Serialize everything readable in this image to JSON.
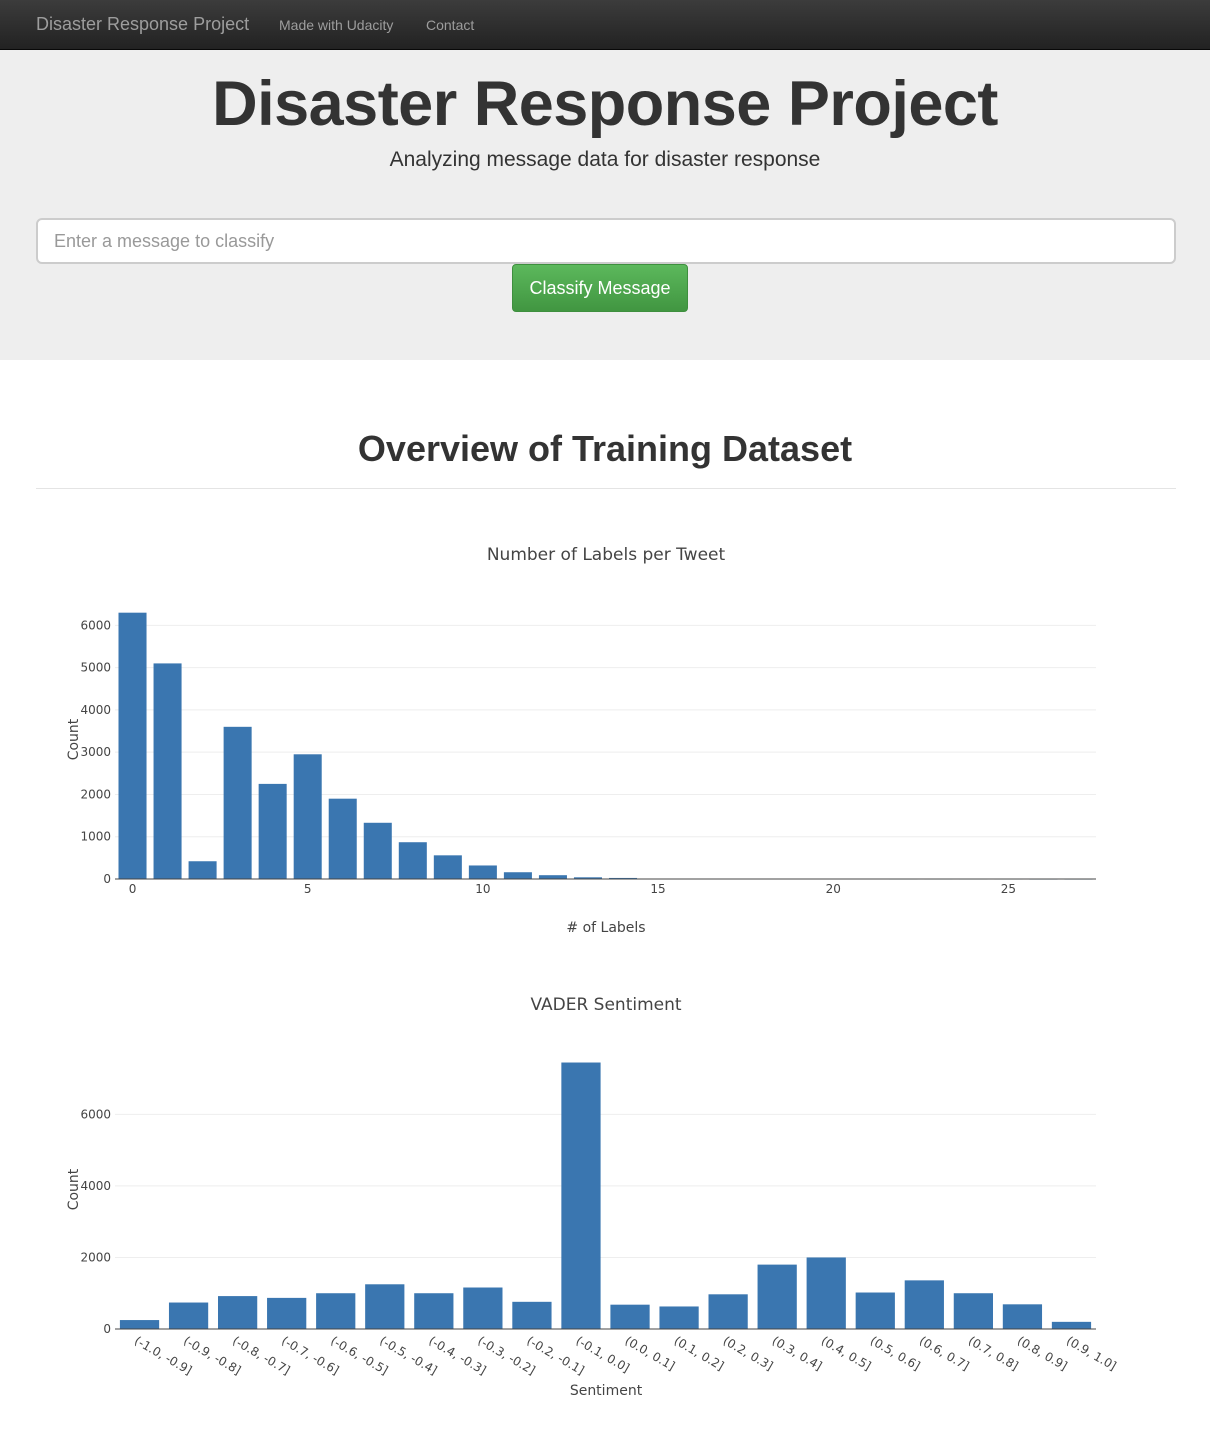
{
  "navbar": {
    "brand": "Disaster Response Project",
    "links": [
      "Made with Udacity",
      "Contact"
    ]
  },
  "header": {
    "title": "Disaster Response Project",
    "subtitle": "Analyzing message data for disaster response"
  },
  "form": {
    "placeholder": "Enter a message to classify",
    "value": "",
    "button_label": "Classify Message"
  },
  "section": {
    "title": "Overview of Training Dataset"
  },
  "colors": {
    "bar": "#3a76b0",
    "button": "#5cb85c",
    "navbar": "#222222",
    "jumbotron": "#eeeeee"
  },
  "chart_data": [
    {
      "type": "bar",
      "title": "Number of Labels per Tweet",
      "xlabel": "# of Labels",
      "ylabel": "Count",
      "x": [
        0,
        1,
        2,
        3,
        4,
        5,
        6,
        7,
        8,
        9,
        10,
        11,
        12,
        13,
        14,
        15,
        16,
        17,
        18,
        19,
        20,
        21,
        22,
        23,
        24,
        25,
        26,
        27
      ],
      "values": [
        6300,
        5100,
        420,
        3600,
        2250,
        2950,
        1900,
        1330,
        870,
        560,
        320,
        160,
        90,
        40,
        25,
        10,
        8,
        6,
        5,
        4,
        3,
        3,
        2,
        2,
        2,
        2,
        1,
        1
      ],
      "xticks": [
        0,
        5,
        10,
        15,
        20,
        25
      ],
      "yticks": [
        0,
        1000,
        2000,
        3000,
        4000,
        5000,
        6000
      ],
      "ylim": [
        0,
        6600
      ],
      "grid": true
    },
    {
      "type": "bar",
      "title": "VADER Sentiment",
      "xlabel": "Sentiment",
      "ylabel": "Count",
      "categories": [
        "(-1.0, -0.9]",
        "(-0.9, -0.8]",
        "(-0.8, -0.7]",
        "(-0.7, -0.6]",
        "(-0.6, -0.5]",
        "(-0.5, -0.4]",
        "(-0.4, -0.3]",
        "(-0.3, -0.2]",
        "(-0.2, -0.1]",
        "(-0.1, 0.0]",
        "(0.0, 0.1]",
        "(0.1, 0.2]",
        "(0.2, 0.3]",
        "(0.3, 0.4]",
        "(0.4, 0.5]",
        "(0.5, 0.6]",
        "(0.6, 0.7]",
        "(0.7, 0.8]",
        "(0.8, 0.9]",
        "(0.9, 1.0]"
      ],
      "values": [
        250,
        740,
        920,
        870,
        1000,
        1250,
        1000,
        1160,
        760,
        7450,
        680,
        630,
        970,
        1800,
        2000,
        1020,
        1360,
        1000,
        690,
        200
      ],
      "yticks": [
        0,
        2000,
        4000,
        6000
      ],
      "ylim": [
        0,
        7800
      ],
      "grid": true
    }
  ]
}
